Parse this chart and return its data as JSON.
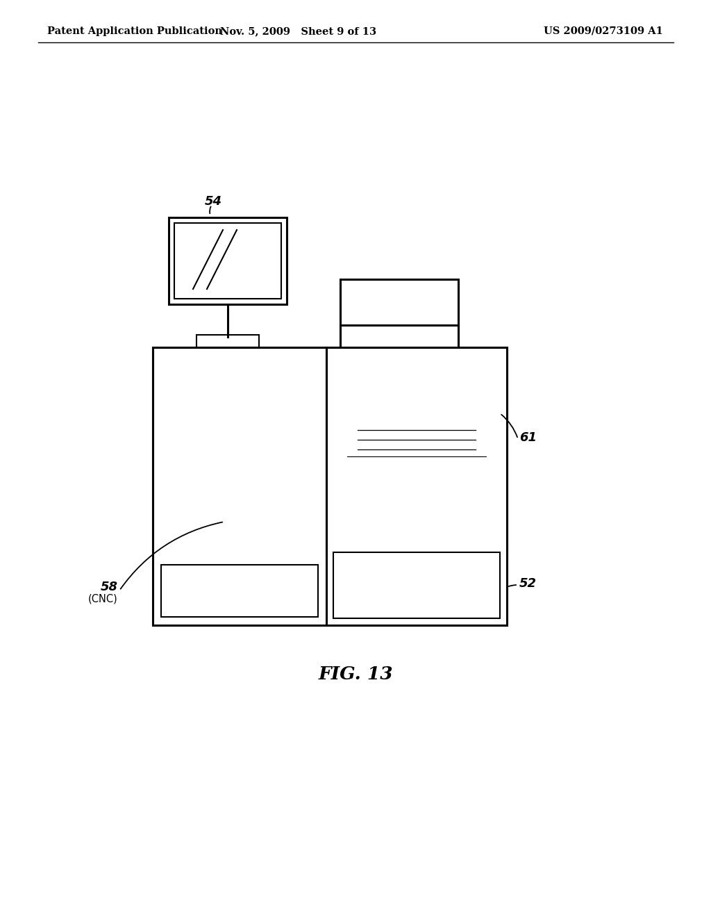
{
  "background_color": "#ffffff",
  "header_left": "Patent Application Publication",
  "header_mid": "Nov. 5, 2009   Sheet 9 of 13",
  "header_right": "US 2009/0273109 A1",
  "figure_label": "FIG. 13",
  "line_color": "#000000"
}
